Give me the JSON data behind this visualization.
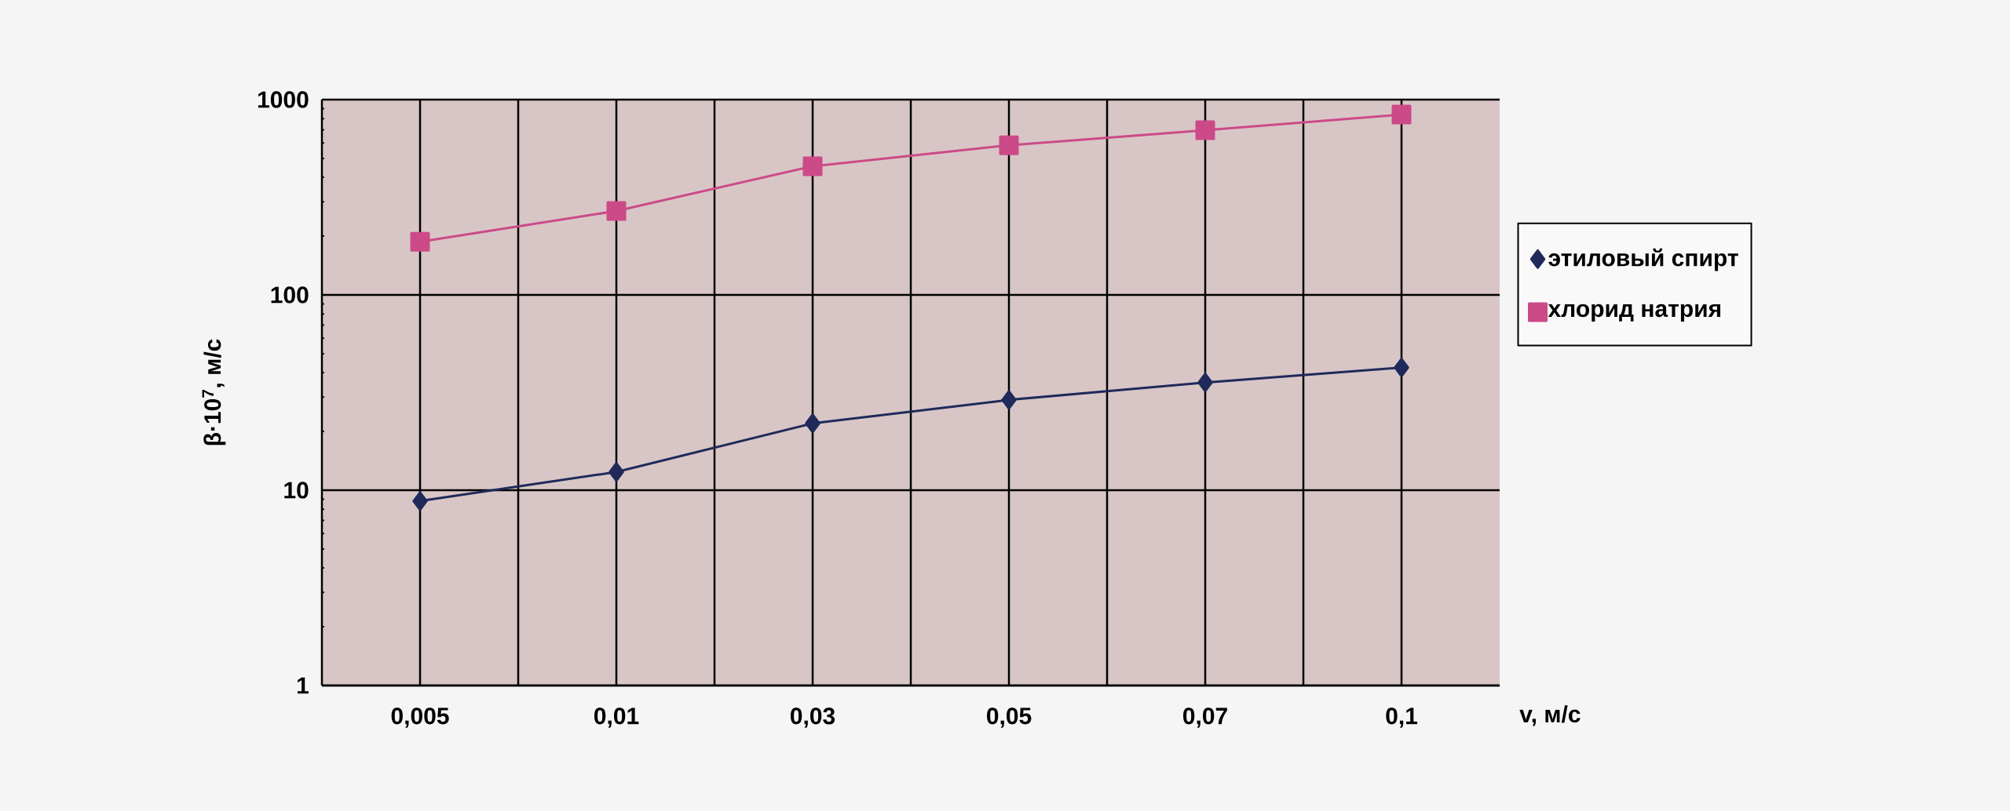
{
  "chart_data": {
    "type": "line",
    "xlabel": "v, м/с",
    "ylabel": "β·10$^{7}$, м/с",
    "categories": [
      "0,005",
      "0,01",
      "0,03",
      "0,05",
      "0,07",
      "0,1"
    ],
    "series": [
      {
        "name": "этиловый спирт",
        "color": "#1f2a5a",
        "marker": "diamond",
        "values": [
          8.8,
          12.4,
          22,
          29,
          35.6,
          42.5
        ]
      },
      {
        "name": "хлорид натрия",
        "color": "#cc4a88",
        "marker": "square",
        "values": [
          187,
          269,
          456,
          584,
          697,
          838
        ]
      }
    ],
    "log": "y",
    "ylim": [
      1,
      1000
    ],
    "yticks": [
      1,
      10,
      100,
      1000
    ],
    "grid": true,
    "legend": "right",
    "line_style": "solid"
  }
}
